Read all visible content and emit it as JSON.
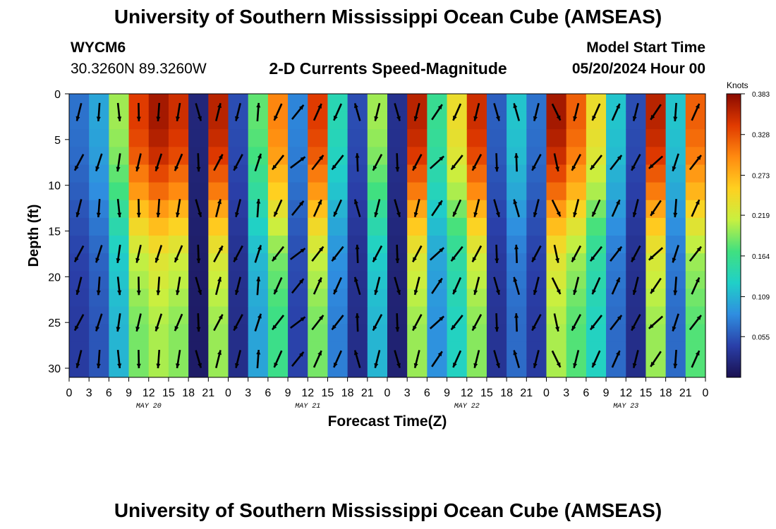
{
  "header": {
    "title": "University of Southern Mississippi Ocean Cube (AMSEAS)",
    "station_id": "WYCM6",
    "coordinates": "30.3260N  89.3260W",
    "chart_title": "2-D Currents Speed-Magnitude",
    "model_start_label": "Model Start Time",
    "model_start_value": "05/20/2024 Hour 00"
  },
  "footer": {
    "title": "University of Southern Mississippi Ocean Cube (AMSEAS)"
  },
  "chart_data": {
    "type": "heatmap",
    "title": "2-D Currents Speed-Magnitude",
    "xlabel": "Forecast Time(Z)",
    "ylabel": "Depth (ft)",
    "x_ticks": [
      "0",
      "3",
      "6",
      "9",
      "12",
      "15",
      "18",
      "21",
      "0",
      "3",
      "6",
      "9",
      "12",
      "15",
      "18",
      "21",
      "0",
      "3",
      "6",
      "9",
      "12",
      "15",
      "18",
      "21",
      "0",
      "3",
      "6",
      "9",
      "12",
      "15",
      "18",
      "21",
      "0"
    ],
    "x_range_hours": [
      0,
      96
    ],
    "date_labels": [
      {
        "label": "MAY 20",
        "hour": 12
      },
      {
        "label": "MAY 21",
        "hour": 36
      },
      {
        "label": "MAY 22",
        "hour": 60
      },
      {
        "label": "MAY 23",
        "hour": 84
      }
    ],
    "y_ticks": [
      0,
      5,
      10,
      15,
      20,
      25,
      30
    ],
    "ylim": [
      0,
      31
    ],
    "colorbar": {
      "label": "Knots",
      "ticks": [
        "0.383",
        "0.328",
        "0.273",
        "0.219",
        "0.164",
        "0.109",
        "0.055"
      ],
      "range": [
        0,
        0.383
      ],
      "colors": [
        "#1a1050",
        "#2a3fa8",
        "#2f8ee0",
        "#20d0c8",
        "#40e080",
        "#c8f040",
        "#ffd020",
        "#ff8a10",
        "#e03a00",
        "#8a0a00"
      ]
    },
    "speed_by_hour_knots": [
      0.07,
      0.1,
      0.2,
      0.34,
      0.37,
      0.35,
      0.02,
      0.36,
      0.05,
      0.18,
      0.3,
      0.08,
      0.34,
      0.14,
      0.05,
      0.2,
      0.03,
      0.36,
      0.16,
      0.24,
      0.35,
      0.06,
      0.12,
      0.07,
      0.37,
      0.32,
      0.24,
      0.12,
      0.05,
      0.36,
      0.12,
      0.32
    ],
    "depth_profile": [
      1.0,
      1.0,
      0.98,
      0.95,
      0.9,
      0.85,
      0.78,
      0.72,
      0.66,
      0.62,
      0.6,
      0.58,
      0.56,
      0.55,
      0.55,
      0.55
    ],
    "arrow_depths_ft": [
      2,
      7.5,
      12.5,
      17.5,
      21,
      25,
      29
    ],
    "arrow_direction_deg_by_hour": [
      200,
      190,
      180,
      185,
      190,
      195,
      170,
      20,
      200,
      10,
      210,
      45,
      30,
      210,
      350,
      200,
      170,
      200,
      40,
      210,
      200,
      170,
      350,
      200,
      160,
      200,
      210,
      30,
      200,
      220,
      190,
      30
    ]
  }
}
